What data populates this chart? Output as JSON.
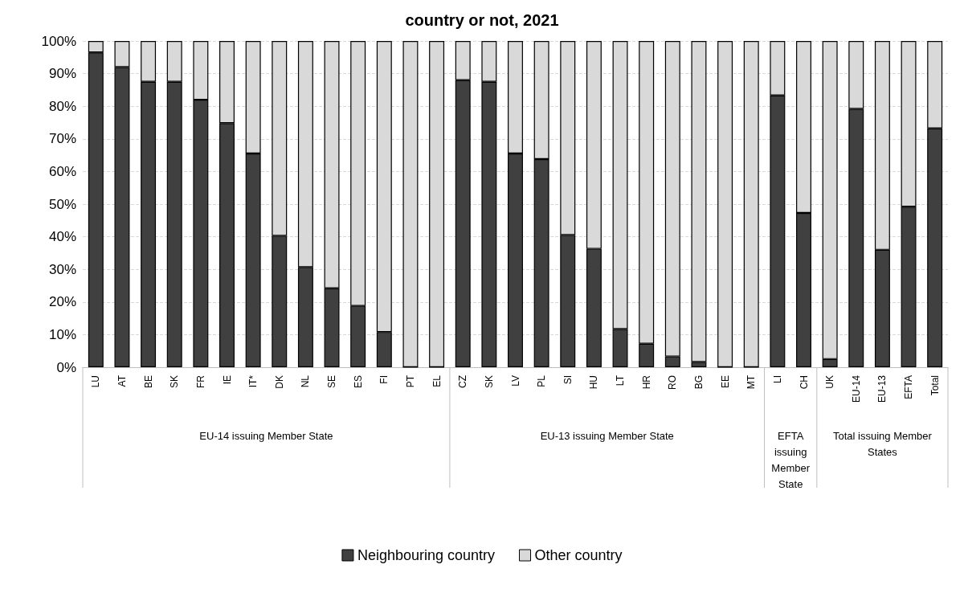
{
  "chart_data": {
    "type": "bar",
    "title": "country or not, 2021",
    "stacked": true,
    "categories": [
      "LU",
      "AT",
      "BE",
      "SK",
      "FR",
      "IE",
      "IT*",
      "DK",
      "NL",
      "SE",
      "ES",
      "FI",
      "PT",
      "EL",
      "CZ",
      "SK",
      "LV",
      "PL",
      "SI",
      "HU",
      "LT",
      "HR",
      "RO",
      "BG",
      "EE",
      "MT",
      "LI",
      "CH",
      "UK",
      "EU-14",
      "EU-13",
      "EFTA",
      "Total"
    ],
    "series": [
      {
        "name": "Neighbouring country",
        "color": "#404040",
        "values": [
          96.5,
          92,
          87.5,
          87.5,
          82,
          74.8,
          65.5,
          40.3,
          30.7,
          24.2,
          18.8,
          10.8,
          0,
          0,
          88,
          87.5,
          65.5,
          63.8,
          40.5,
          36.3,
          11.7,
          7.2,
          3.3,
          1.6,
          0,
          0,
          83.3,
          47.3,
          2.5,
          79.2,
          36,
          49.2,
          73.2
        ]
      },
      {
        "name": "Other country",
        "color": "#d9d9d9",
        "values": [
          3.5,
          8,
          12.5,
          12.5,
          18,
          25.2,
          34.5,
          59.7,
          69.3,
          75.8,
          81.2,
          89.2,
          100,
          100,
          12,
          12.5,
          34.5,
          36.2,
          59.5,
          63.7,
          88.3,
          92.8,
          96.7,
          98.4,
          100,
          100,
          16.7,
          52.7,
          97.5,
          20.8,
          64,
          50.8,
          26.8
        ]
      }
    ],
    "ylim": [
      0,
      100
    ],
    "yticks": [
      {
        "value": 0,
        "label": "0%"
      },
      {
        "value": 10,
        "label": "10%"
      },
      {
        "value": 20,
        "label": "20%"
      },
      {
        "value": 30,
        "label": "30%"
      },
      {
        "value": 40,
        "label": "40%"
      },
      {
        "value": 50,
        "label": "50%"
      },
      {
        "value": 60,
        "label": "60%"
      },
      {
        "value": 70,
        "label": "70%"
      },
      {
        "value": 80,
        "label": "80%"
      },
      {
        "value": 90,
        "label": "90%"
      },
      {
        "value": 100,
        "label": "100%"
      }
    ],
    "grid": "y",
    "legend": "bottom",
    "annotations": [
      "EU-14 issuing Member State",
      "EU-13 issuing Member State",
      "EFTA issuing Member State",
      "Total issuing Member States"
    ]
  }
}
